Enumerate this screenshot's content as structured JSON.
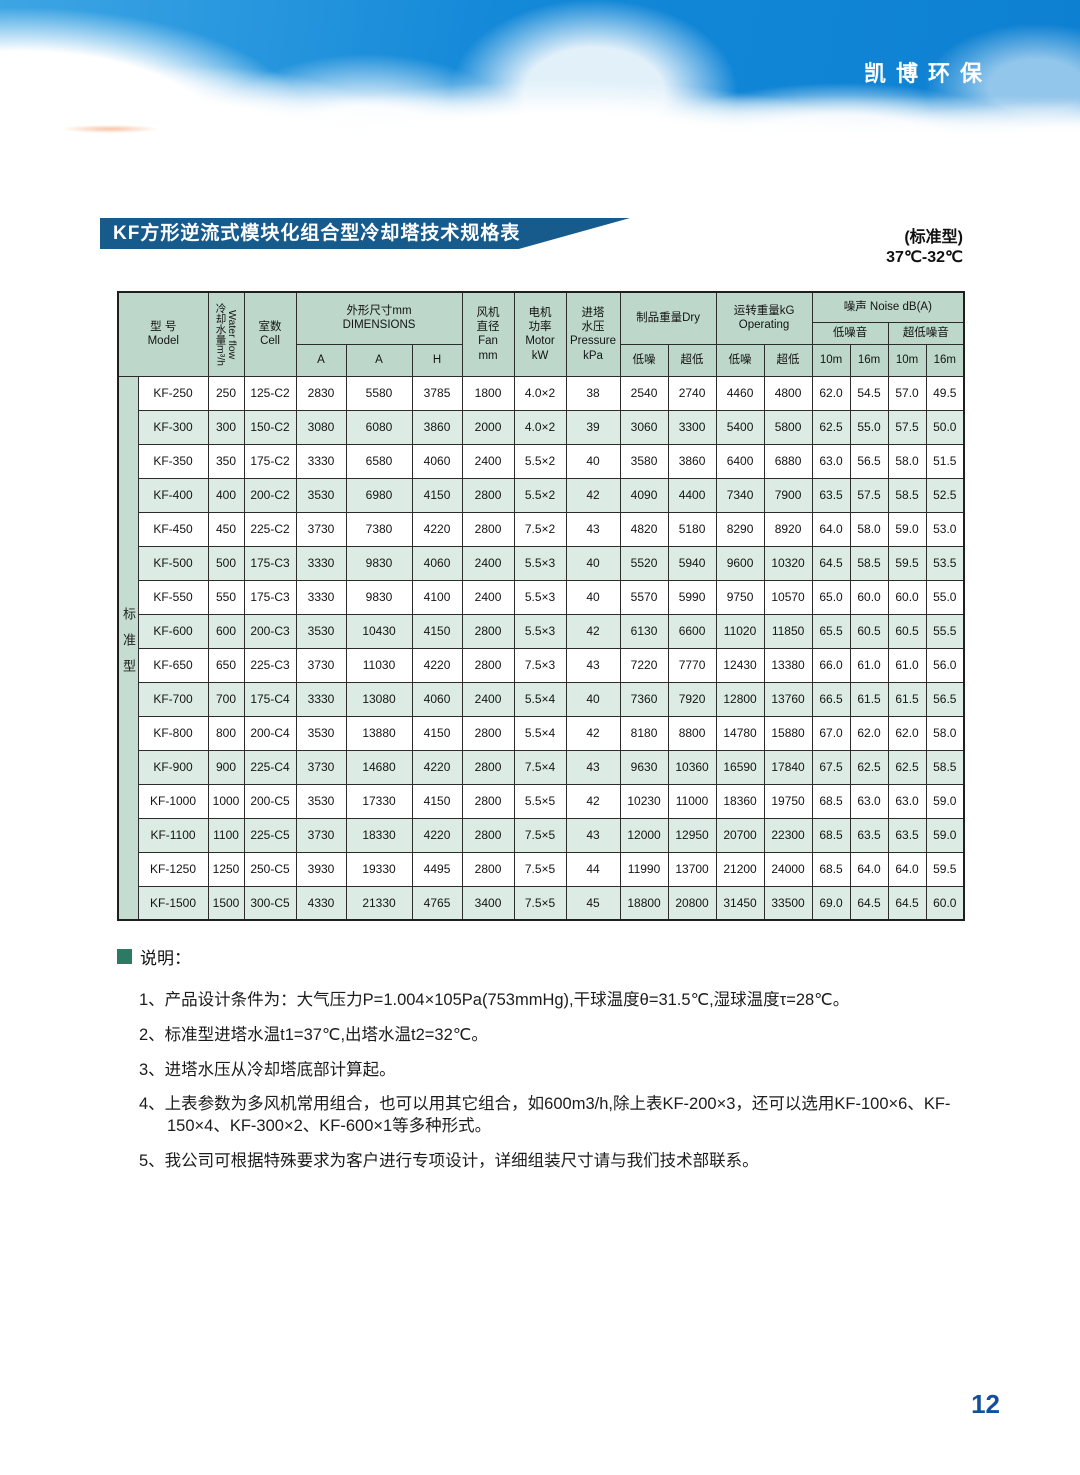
{
  "brand": {
    "logo_text": "凯博环保",
    "page_number": "12"
  },
  "title": {
    "banner": "KF方形逆流式模块化组合型冷却塔技术规格表",
    "type_label": "(标准型)",
    "temp_range": "37℃-32℃"
  },
  "table": {
    "side_label": "标准型",
    "header": {
      "model": "型 号\nModel",
      "water_flow": {
        "zh": "冷却水量m³/h",
        "en": "Water flow"
      },
      "cell": "室数\nCell",
      "dimensions": {
        "label": "外形尺寸mm\nDIMENSIONS",
        "cols": [
          "A",
          "A",
          "H"
        ]
      },
      "fan": "风机\n直径\nFan\nmm",
      "motor": "电机\n功率\nMotor\nkW",
      "pressure": "进塔\n水压\nPressure\nkPa",
      "dry": {
        "label": "制品重量Dry",
        "cols": [
          "低噪",
          "超低"
        ]
      },
      "operating": {
        "label": "运转重量kG\nOperating",
        "cols": [
          "低噪",
          "超低"
        ]
      },
      "noise": {
        "label": "噪声 Noise dB(A)",
        "groups": [
          {
            "label": "低噪音",
            "cols": [
              "10m",
              "16m"
            ]
          },
          {
            "label": "超低噪音",
            "cols": [
              "10m",
              "16m"
            ]
          }
        ]
      }
    },
    "rows": [
      [
        "KF-250",
        "250",
        "125-C2",
        "2830",
        "5580",
        "3785",
        "1800",
        "4.0×2",
        "38",
        "2540",
        "2740",
        "4460",
        "4800",
        "62.0",
        "54.5",
        "57.0",
        "49.5"
      ],
      [
        "KF-300",
        "300",
        "150-C2",
        "3080",
        "6080",
        "3860",
        "2000",
        "4.0×2",
        "39",
        "3060",
        "3300",
        "5400",
        "5800",
        "62.5",
        "55.0",
        "57.5",
        "50.0"
      ],
      [
        "KF-350",
        "350",
        "175-C2",
        "3330",
        "6580",
        "4060",
        "2400",
        "5.5×2",
        "40",
        "3580",
        "3860",
        "6400",
        "6880",
        "63.0",
        "56.5",
        "58.0",
        "51.5"
      ],
      [
        "KF-400",
        "400",
        "200-C2",
        "3530",
        "6980",
        "4150",
        "2800",
        "5.5×2",
        "42",
        "4090",
        "4400",
        "7340",
        "7900",
        "63.5",
        "57.5",
        "58.5",
        "52.5"
      ],
      [
        "KF-450",
        "450",
        "225-C2",
        "3730",
        "7380",
        "4220",
        "2800",
        "7.5×2",
        "43",
        "4820",
        "5180",
        "8290",
        "8920",
        "64.0",
        "58.0",
        "59.0",
        "53.0"
      ],
      [
        "KF-500",
        "500",
        "175-C3",
        "3330",
        "9830",
        "4060",
        "2400",
        "5.5×3",
        "40",
        "5520",
        "5940",
        "9600",
        "10320",
        "64.5",
        "58.5",
        "59.5",
        "53.5"
      ],
      [
        "KF-550",
        "550",
        "175-C3",
        "3330",
        "9830",
        "4100",
        "2400",
        "5.5×3",
        "40",
        "5570",
        "5990",
        "9750",
        "10570",
        "65.0",
        "60.0",
        "60.0",
        "55.0"
      ],
      [
        "KF-600",
        "600",
        "200-C3",
        "3530",
        "10430",
        "4150",
        "2800",
        "5.5×3",
        "42",
        "6130",
        "6600",
        "11020",
        "11850",
        "65.5",
        "60.5",
        "60.5",
        "55.5"
      ],
      [
        "KF-650",
        "650",
        "225-C3",
        "3730",
        "11030",
        "4220",
        "2800",
        "7.5×3",
        "43",
        "7220",
        "7770",
        "12430",
        "13380",
        "66.0",
        "61.0",
        "61.0",
        "56.0"
      ],
      [
        "KF-700",
        "700",
        "175-C4",
        "3330",
        "13080",
        "4060",
        "2400",
        "5.5×4",
        "40",
        "7360",
        "7920",
        "12800",
        "13760",
        "66.5",
        "61.5",
        "61.5",
        "56.5"
      ],
      [
        "KF-800",
        "800",
        "200-C4",
        "3530",
        "13880",
        "4150",
        "2800",
        "5.5×4",
        "42",
        "8180",
        "8800",
        "14780",
        "15880",
        "67.0",
        "62.0",
        "62.0",
        "58.0"
      ],
      [
        "KF-900",
        "900",
        "225-C4",
        "3730",
        "14680",
        "4220",
        "2800",
        "7.5×4",
        "43",
        "9630",
        "10360",
        "16590",
        "17840",
        "67.5",
        "62.5",
        "62.5",
        "58.5"
      ],
      [
        "KF-1000",
        "1000",
        "200-C5",
        "3530",
        "17330",
        "4150",
        "2800",
        "5.5×5",
        "42",
        "10230",
        "11000",
        "18360",
        "19750",
        "68.5",
        "63.0",
        "63.0",
        "59.0"
      ],
      [
        "KF-1100",
        "1100",
        "225-C5",
        "3730",
        "18330",
        "4220",
        "2800",
        "7.5×5",
        "43",
        "12000",
        "12950",
        "20700",
        "22300",
        "68.5",
        "63.5",
        "63.5",
        "59.0"
      ],
      [
        "KF-1250",
        "1250",
        "250-C5",
        "3930",
        "19330",
        "4495",
        "2800",
        "7.5×5",
        "44",
        "11990",
        "13700",
        "21200",
        "24000",
        "68.5",
        "64.0",
        "64.0",
        "59.5"
      ],
      [
        "KF-1500",
        "1500",
        "300-C5",
        "4330",
        "21330",
        "4765",
        "3400",
        "7.5×5",
        "45",
        "18800",
        "20800",
        "31450",
        "33500",
        "69.0",
        "64.5",
        "64.5",
        "60.0"
      ]
    ]
  },
  "notes": {
    "heading": "说明：",
    "items": [
      "1、产品设计条件为：大气压力P=1.004×105Pa(753mmHg),干球温度θ=31.5℃,湿球温度τ=28℃。",
      "2、标准型进塔水温t1=37℃,出塔水温t2=32℃。",
      "3、进塔水压从冷却塔底部计算起。",
      "4、上表参数为多风机常用组合，也可以用其它组合，如600m3/h,除上表KF-200×3，还可以选用KF-100×6、KF-150×4、KF-300×2、KF-600×1等多种形式。",
      "5、我公司可根据特殊要求为客户进行专项设计，详细组装尺寸请与我们技术部联系。"
    ]
  }
}
